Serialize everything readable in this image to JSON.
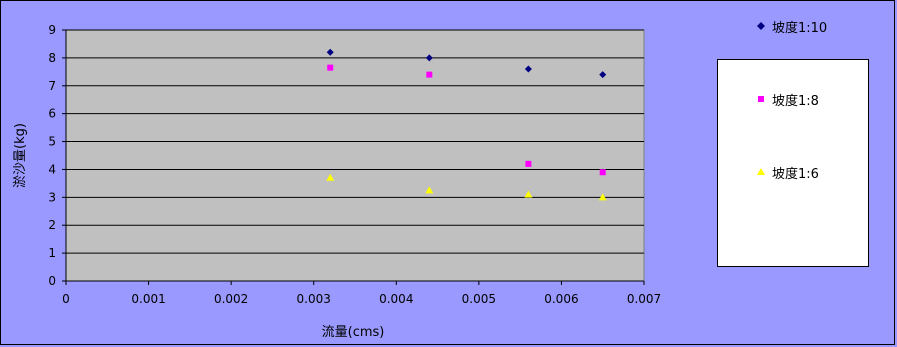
{
  "chart_data": {
    "type": "scatter",
    "title": "",
    "xlabel": "流量(cms)",
    "ylabel": "淤沙量(kg)",
    "xlim": [
      0,
      0.007
    ],
    "ylim": [
      0,
      9
    ],
    "xticks": [
      "0",
      "0.001",
      "0.002",
      "0.003",
      "0.004",
      "0.005",
      "0.006",
      "0.007"
    ],
    "yticks": [
      "0",
      "1",
      "2",
      "3",
      "4",
      "5",
      "6",
      "7",
      "8",
      "9"
    ],
    "grid": "horizontal",
    "legend_position": "right",
    "plot_background": "#c0c0c0",
    "chart_background": "#9999ff",
    "series": [
      {
        "name": "坡度1:10",
        "marker": "diamond",
        "color": "#000080",
        "points": [
          [
            0.0032,
            8.2
          ],
          [
            0.0044,
            8.0
          ],
          [
            0.0056,
            7.6
          ],
          [
            0.0065,
            7.4
          ]
        ]
      },
      {
        "name": "坡度1:8",
        "marker": "square",
        "color": "#ff00ff",
        "points": [
          [
            0.0032,
            7.65
          ],
          [
            0.0044,
            7.4
          ],
          [
            0.0056,
            4.2
          ],
          [
            0.0065,
            3.9
          ]
        ]
      },
      {
        "name": "坡度1:6",
        "marker": "triangle",
        "color": "#ffff00",
        "points": [
          [
            0.0032,
            3.7
          ],
          [
            0.0044,
            3.25
          ],
          [
            0.0056,
            3.1
          ],
          [
            0.0065,
            3.0
          ]
        ]
      }
    ]
  }
}
